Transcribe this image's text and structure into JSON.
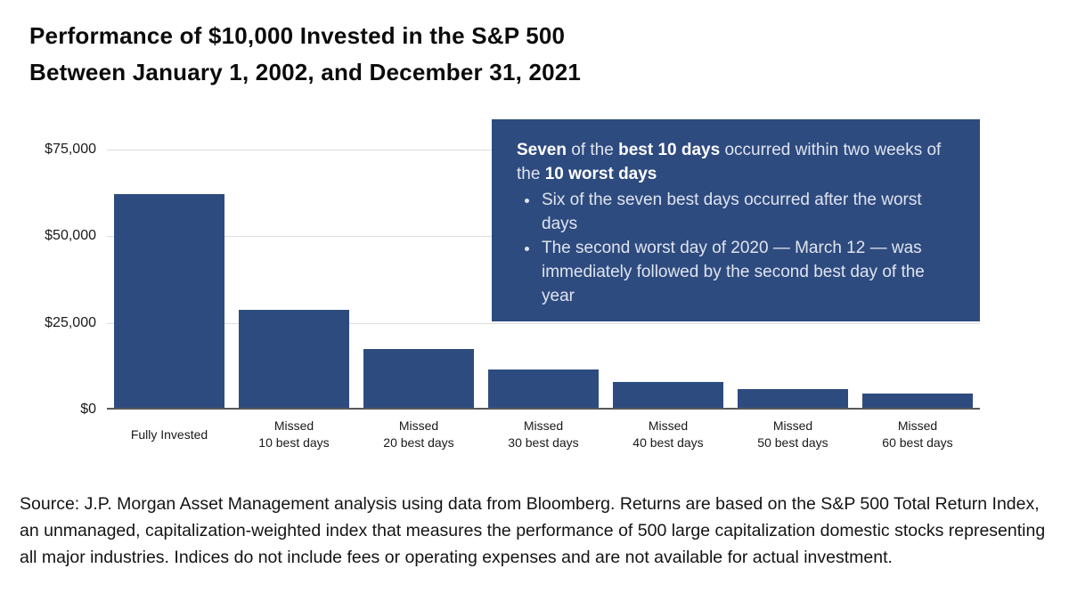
{
  "title": {
    "line1": "Performance of $10,000 Invested in the S&P 500",
    "line2": "Between January 1, 2002, and December 31, 2021"
  },
  "chart_data": {
    "type": "bar",
    "title": "Performance of $10,000 Invested in the S&P 500 Between January 1, 2002, and December 31, 2021",
    "categories": [
      "Fully Invested",
      "Missed 10 best days",
      "Missed 20 best days",
      "Missed 30 best days",
      "Missed 40 best days",
      "Missed 50 best days",
      "Missed 60 best days"
    ],
    "category_label_lines": [
      [
        "Fully Invested"
      ],
      [
        "Missed",
        "10 best days"
      ],
      [
        "Missed",
        "20 best days"
      ],
      [
        "Missed",
        "30 best days"
      ],
      [
        "Missed",
        "40 best days"
      ],
      [
        "Missed",
        "50 best days"
      ],
      [
        "Missed",
        "60 best days"
      ]
    ],
    "values": [
      61700,
      28300,
      17000,
      11000,
      7500,
      5400,
      4000
    ],
    "xlabel": "",
    "ylabel": "",
    "ylim": [
      0,
      84800
    ],
    "yticks": [
      {
        "value": 75000,
        "label": "$75,000"
      },
      {
        "value": 50000,
        "label": "$50,000"
      },
      {
        "value": 25000,
        "label": "$25,000"
      },
      {
        "value": 0,
        "label": "$0"
      }
    ],
    "bar_color": "#2e4b7f",
    "grid": true,
    "legend_position": "none"
  },
  "annotation": {
    "background_color": "#2e4b7f",
    "intro_segments": [
      {
        "text": "Seven",
        "bold": true
      },
      {
        "text": " of the ",
        "bold": false
      },
      {
        "text": "best 10 days",
        "bold": true
      },
      {
        "text": " occurred within two weeks of the ",
        "bold": false
      },
      {
        "text": "10 worst days",
        "bold": true
      }
    ],
    "bullets": [
      "Six of the seven best days occurred after the worst days",
      "The second worst day of 2020 — March 12 — was immediately followed by the second best day of the year"
    ]
  },
  "source": "Source: J.P. Morgan Asset Management analysis using data from Bloomberg. Returns are based on the S&P 500 Total Return Index, an unmanaged, capitalization-weighted index that measures the performance of 500 large capitalization domestic stocks representing all major industries. Indices do not include fees or operating expenses and are not available for actual investment."
}
